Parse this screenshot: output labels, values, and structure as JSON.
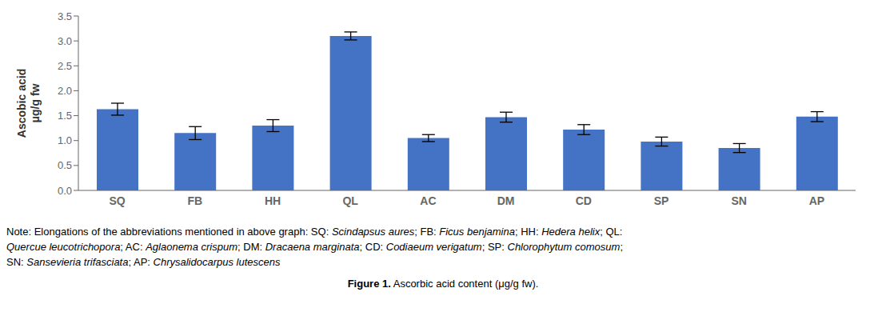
{
  "chart_data": {
    "type": "bar",
    "categories": [
      "SQ",
      "FB",
      "HH",
      "QL",
      "AC",
      "DM",
      "CD",
      "SP",
      "SN",
      "AP"
    ],
    "values": [
      1.63,
      1.15,
      1.3,
      3.1,
      1.05,
      1.47,
      1.22,
      0.98,
      0.85,
      1.48
    ],
    "errors": [
      0.12,
      0.13,
      0.12,
      0.08,
      0.07,
      0.1,
      0.1,
      0.09,
      0.09,
      0.1
    ],
    "color": "#4472C4",
    "ylabel": "Ascobic acid\nμg/g fw",
    "ylim": [
      0,
      3.5
    ],
    "yticks": [
      {
        "value": 0,
        "label": "0.0"
      },
      0.5,
      {
        "value": 1,
        "label": "1.0"
      },
      1.5,
      {
        "value": 2,
        "label": "2.0"
      },
      2.5,
      {
        "value": 3,
        "label": "3.0"
      },
      3.5
    ],
    "grid": false,
    "notes": [
      [
        {
          "text": "Note: Elongations of the abbreviations mentioned in above graph: SQ: ",
          "italic": false
        },
        {
          "text": "Scindapsus aures",
          "italic": true
        },
        {
          "text": "; FB: ",
          "italic": false
        },
        {
          "text": "Ficus benjamina",
          "italic": true
        },
        {
          "text": "; HH: ",
          "italic": false
        },
        {
          "text": "Hedera helix",
          "italic": true
        },
        {
          "text": "; QL:",
          "italic": false
        }
      ],
      [
        {
          "text": "Quercue leucotrichopora",
          "italic": true
        },
        {
          "text": "; AC: ",
          "italic": false
        },
        {
          "text": "Aglaonema crispum",
          "italic": true
        },
        {
          "text": "; DM: ",
          "italic": false
        },
        {
          "text": "Dracaena marginata",
          "italic": true
        },
        {
          "text": "; CD: ",
          "italic": false
        },
        {
          "text": "Codiaeum verigatum",
          "italic": true
        },
        {
          "text": "; SP: ",
          "italic": false
        },
        {
          "text": "Chlorophytum comosum",
          "italic": true
        },
        {
          "text": ";",
          "italic": false
        }
      ],
      [
        {
          "text": "SN: ",
          "italic": false
        },
        {
          "text": "Sansevieria trifasciata",
          "italic": true
        },
        {
          "text": "; AP: ",
          "italic": false
        },
        {
          "text": "Chrysalidocarpus lutescens",
          "italic": true
        }
      ]
    ],
    "caption": {
      "bold": "Figure 1.",
      "text": " Ascorbic acid content (μg/g fw)."
    }
  }
}
